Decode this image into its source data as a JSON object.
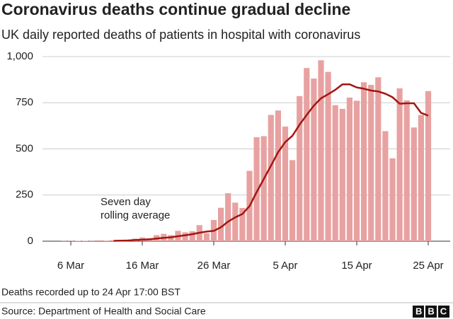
{
  "chart_data": {
    "type": "bar",
    "title": "Coronavirus deaths continue gradual decline",
    "subtitle": "UK daily reported deaths of patients in hospital with coronavirus",
    "categories": [
      null,
      null,
      null,
      null,
      "6 Mar",
      null,
      null,
      null,
      null,
      null,
      null,
      null,
      null,
      null,
      "16 Mar",
      null,
      null,
      null,
      null,
      null,
      null,
      null,
      null,
      null,
      "26 Mar",
      null,
      null,
      null,
      null,
      null,
      null,
      null,
      null,
      null,
      "5 Apr",
      null,
      null,
      null,
      null,
      null,
      null,
      null,
      null,
      null,
      "15 Apr",
      null,
      null,
      null,
      null,
      null,
      null,
      null,
      null,
      null,
      "25 Apr"
    ],
    "series": [
      {
        "type": "bar",
        "color": "#e8a1a1",
        "values": [
          0,
          0,
          0,
          1,
          1,
          2,
          2,
          1,
          5,
          3,
          6,
          7,
          3,
          14,
          20,
          16,
          33,
          40,
          33,
          56,
          48,
          54,
          87,
          43,
          115,
          181,
          260,
          209,
          180,
          381,
          563,
          569,
          684,
          708,
          621,
          439,
          786,
          938,
          881,
          980,
          917,
          737,
          717,
          778,
          761,
          861,
          847,
          888,
          596,
          449,
          828,
          763,
          616,
          684,
          813
        ]
      },
      {
        "type": "line",
        "color": "#a3160f",
        "values": [
          null,
          null,
          null,
          null,
          null,
          null,
          null,
          null,
          null,
          null,
          2,
          3,
          4,
          6,
          8,
          10,
          14,
          18,
          21,
          27,
          32,
          38,
          46,
          52,
          56,
          75,
          106,
          129,
          147,
          190,
          266,
          337,
          409,
          482,
          537,
          571,
          631,
          684,
          734,
          774,
          796,
          820,
          850,
          850,
          833,
          826,
          816,
          811,
          799,
          780,
          745,
          747,
          747,
          695,
          680
        ]
      }
    ],
    "annotation": [
      "Seven day",
      "rolling average"
    ],
    "ylim": [
      0,
      1000
    ],
    "yticks": [
      0,
      250,
      500,
      750,
      {
        "value": 1000,
        "label": "1,000"
      }
    ],
    "grid": true,
    "note": "Deaths recorded up to 24 Apr 17:00 BST",
    "source": "Source: Department of Health and Social Care",
    "logo": "BBC"
  }
}
